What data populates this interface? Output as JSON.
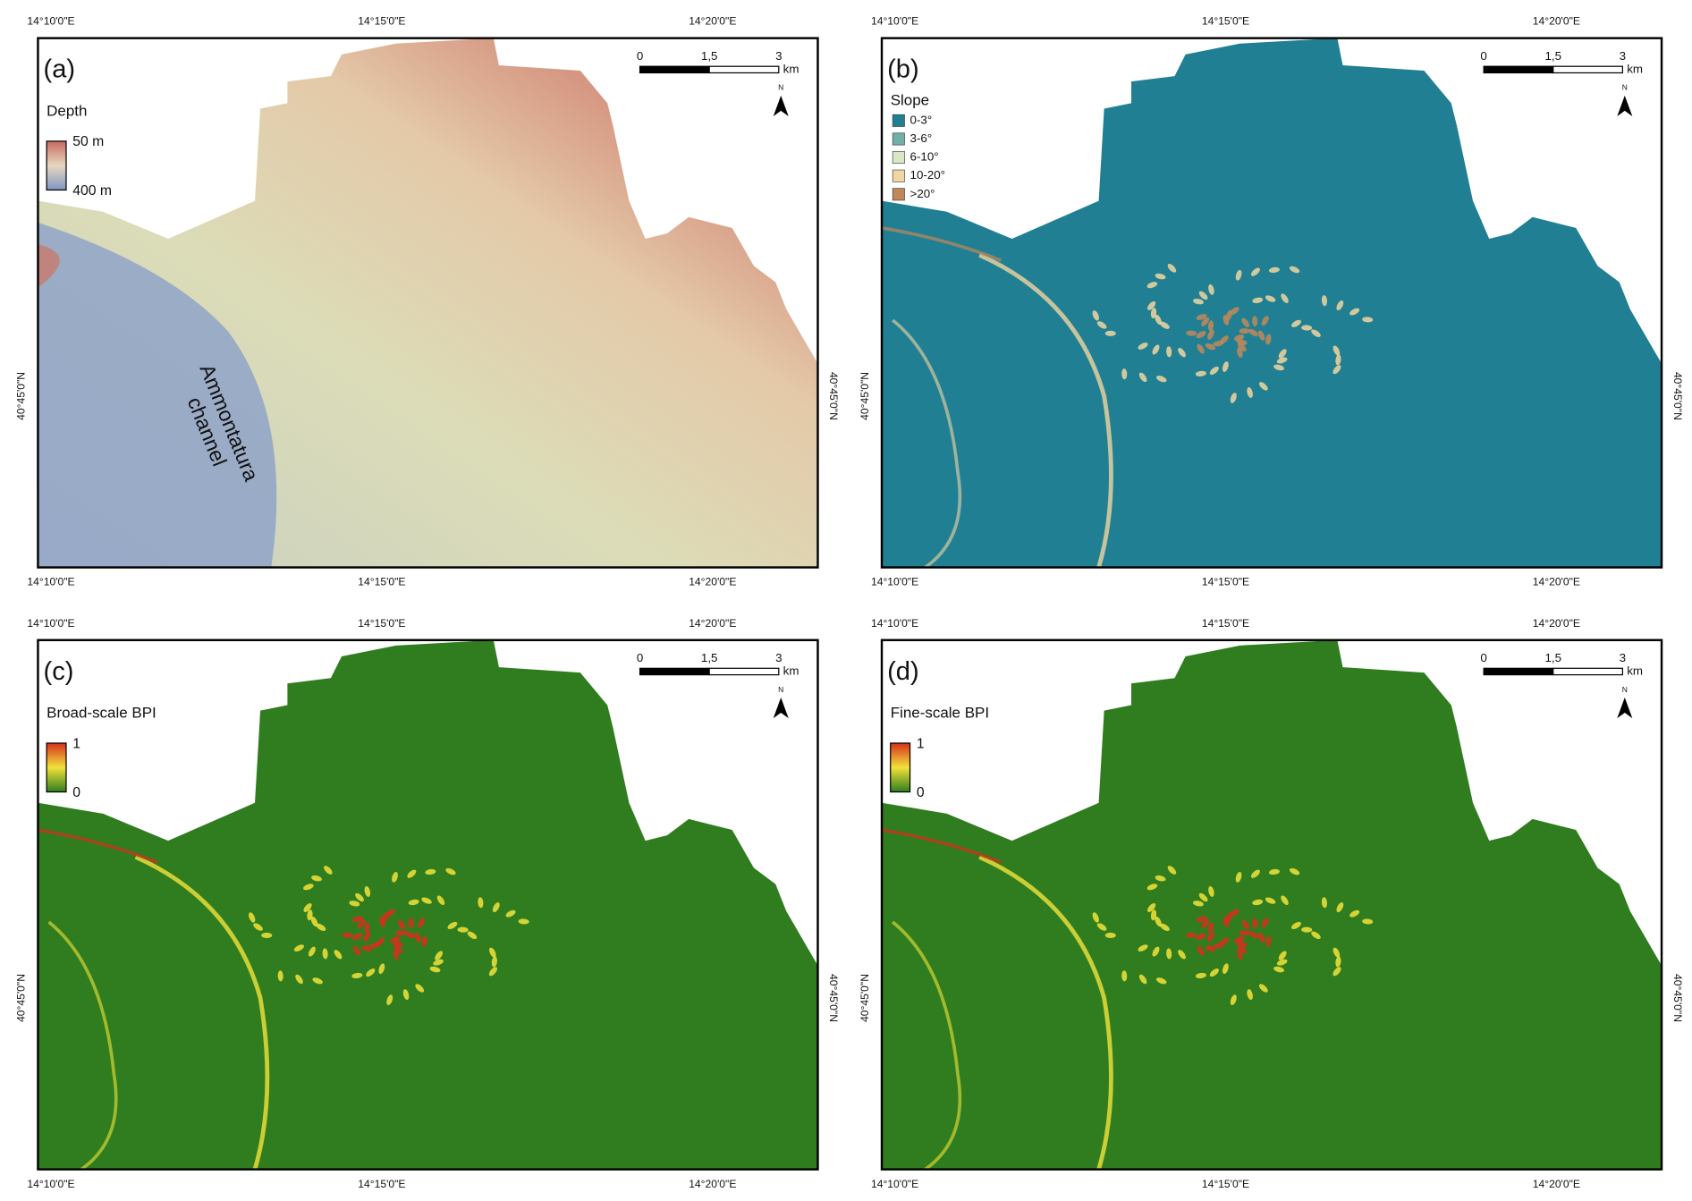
{
  "longitude_labels": [
    "14°10'0\"E",
    "14°15'0\"E",
    "14°20'0\"E"
  ],
  "latitude_label": "40°45'0\"N",
  "scale_bar": {
    "ticks": [
      "0",
      "1,5",
      "3"
    ],
    "unit": "km"
  },
  "north": "N",
  "panels": [
    {
      "letter": "(a)",
      "legend": {
        "title": "Depth",
        "kind": "gradient",
        "colors": [
          "#c76a5f",
          "#e8d6c0",
          "#7f96c4"
        ],
        "labels": [
          "50 m",
          "400 m"
        ]
      },
      "annotation": [
        "Ammontatura",
        "channel"
      ]
    },
    {
      "letter": "(b)",
      "legend": {
        "title": "Slope",
        "kind": "classes",
        "items": [
          {
            "label": "0-3°",
            "color": "#217f93"
          },
          {
            "label": "3-6°",
            "color": "#6fb0a8"
          },
          {
            "label": "6-10°",
            "color": "#d9e8c4"
          },
          {
            "label": "10-20°",
            "color": "#f0d6a0"
          },
          {
            "label": ">20°",
            "color": "#c0885a"
          }
        ]
      }
    },
    {
      "letter": "(c)",
      "legend": {
        "title": "Broad-scale BPI",
        "kind": "gradient",
        "colors": [
          "#d62f1c",
          "#f2e23a",
          "#2f7d1e"
        ],
        "labels": [
          "1",
          "0"
        ]
      }
    },
    {
      "letter": "(d)",
      "legend": {
        "title": "Fine-scale BPI",
        "kind": "gradient",
        "colors": [
          "#d62f1c",
          "#f2e23a",
          "#2f7d1e"
        ],
        "labels": [
          "1",
          "0"
        ]
      }
    }
  ]
}
